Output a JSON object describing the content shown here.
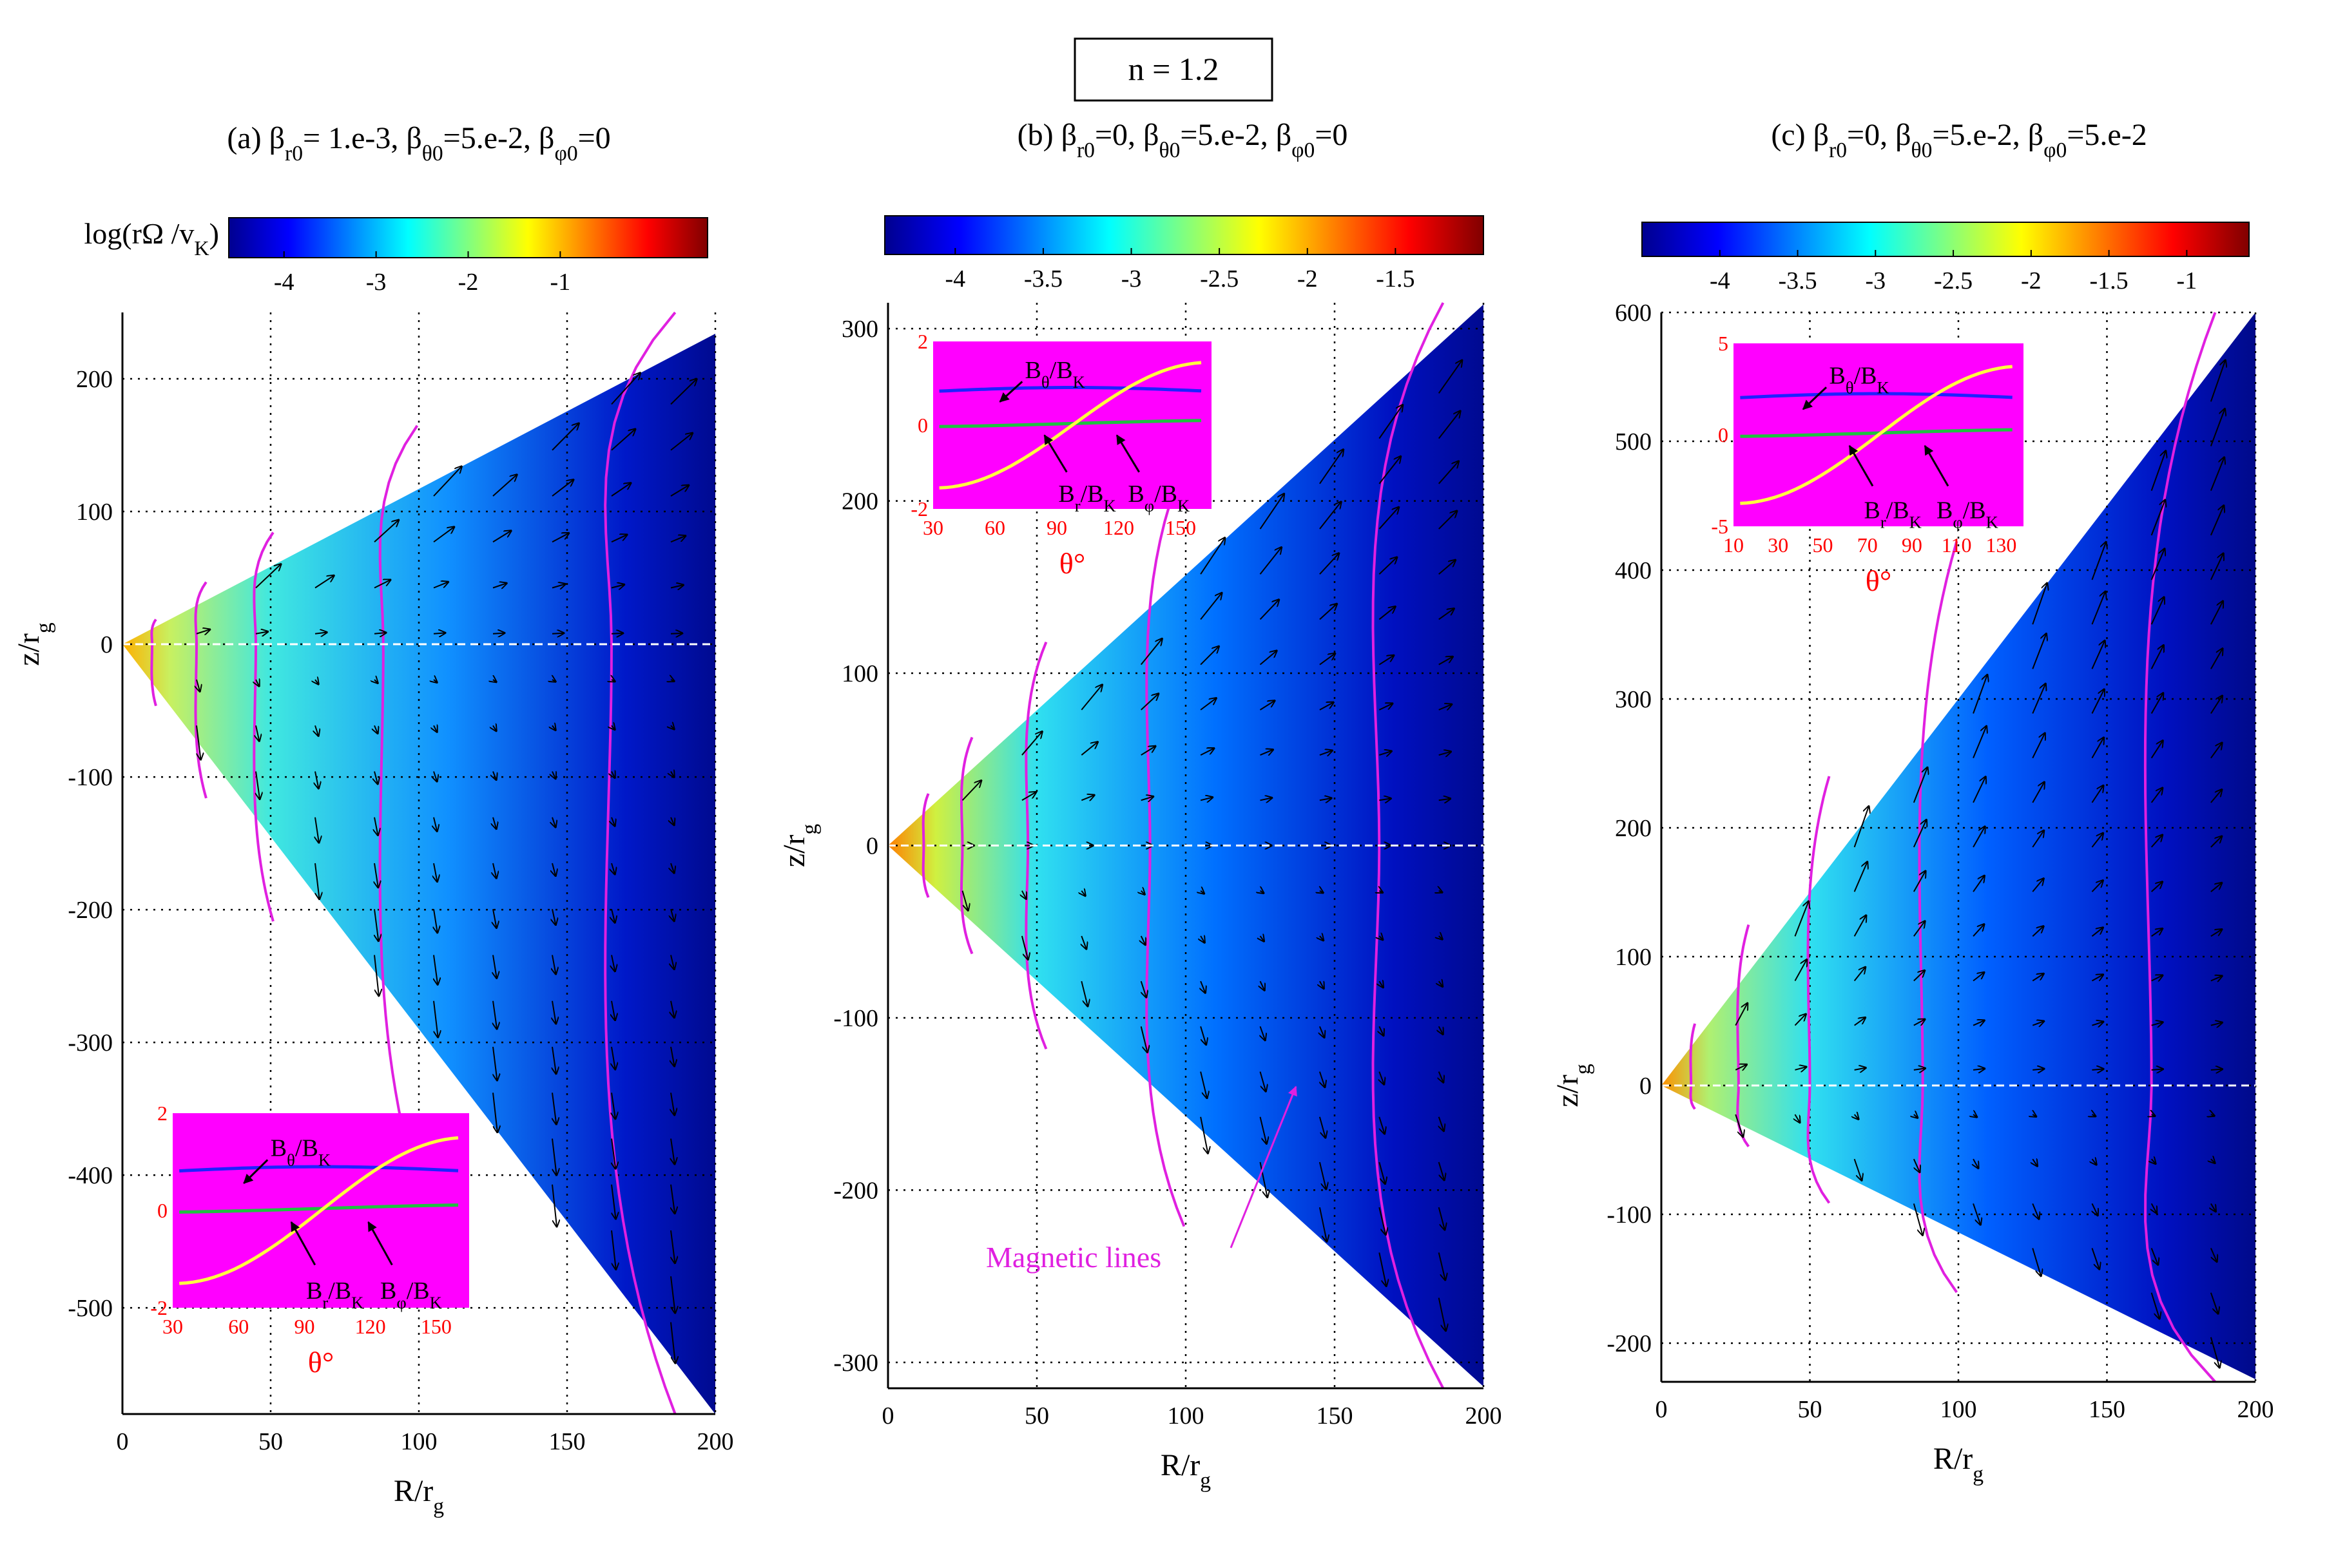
{
  "figure_title": "n = 1.2",
  "colors": {
    "magnetic_line": "#e020e0",
    "inset_bg": "#ff00ff",
    "b_theta": "#2020ff",
    "b_r": "#20c040",
    "b_phi": "#ffff40",
    "inset_tick": "#ff0000",
    "equator": "#ffffff"
  },
  "chart_data": [
    {
      "type": "heatmap",
      "id": "a",
      "title_parts": {
        "prefix": "(a) ",
        "beta": "β",
        "sub_r": "r0",
        "val_r": "= 1.e-3, ",
        "sub_t": "θ0",
        "val_t": "=5.e-2, ",
        "sub_p": "φ0",
        "val_p": "=0"
      },
      "colorbar_label": "log(rΩ /v",
      "colorbar_label_sub": "K",
      "colorbar_label_end": ")",
      "colorbar": {
        "range": [
          -4.6,
          0.6
        ],
        "ticks": [
          "-4",
          "-3",
          "-2",
          "-1"
        ],
        "tick_values": [
          -4,
          -3,
          -2,
          -1
        ]
      },
      "xlabel": "R/r",
      "xlabel_sub": "g",
      "ylabel": "z/r",
      "ylabel_sub": "g",
      "xlim": [
        0,
        200
      ],
      "ylim": [
        -580,
        250
      ],
      "xticks": [
        0,
        50,
        100,
        150,
        200
      ],
      "xtick_labels": [
        "0",
        "50",
        "100",
        "150",
        "200"
      ],
      "yticks": [
        200,
        100,
        0,
        -100,
        -200,
        -300,
        -400,
        -500
      ],
      "ytick_labels": [
        "200",
        "100",
        "0",
        "-100",
        "-200",
        "-300",
        "-400",
        "-500"
      ],
      "wedge_slopes": {
        "upper": 1.17,
        "lower": -2.9
      },
      "field_lines_R_at_equator": [
        10,
        25,
        45,
        88,
        165
      ],
      "inset": {
        "placement": "bottom-left",
        "xticks": [
          30,
          60,
          90,
          120,
          150
        ],
        "xtick_labels": [
          "30",
          "60",
          "90",
          "120",
          "150"
        ],
        "yticks": [
          2,
          0,
          -2
        ],
        "ytick_labels": [
          "2",
          "0",
          "-2"
        ],
        "xlabel": "θ°",
        "labels": {
          "theta": "B",
          "theta_sub": "θ",
          "theta_den": "/B",
          "theta_den_sub": "K",
          "r": "B",
          "r_sub": "r",
          "r_den": "/B",
          "r_den_sub": "K",
          "phi": "B",
          "phi_sub": "φ",
          "phi_den": "/B",
          "phi_den_sub": "K"
        }
      }
    },
    {
      "type": "heatmap",
      "id": "b",
      "title_parts": {
        "prefix": "(b) ",
        "beta": "β",
        "sub_r": "r0",
        "val_r": "=0, ",
        "sub_t": "θ0",
        "val_t": "=5.e-2, ",
        "sub_p": "φ0",
        "val_p": "=0"
      },
      "colorbar": {
        "range": [
          -4.4,
          -1.0
        ],
        "ticks": [
          "-4",
          "-3.5",
          "-3",
          "-2.5",
          "-2",
          "-1.5"
        ],
        "tick_values": [
          -4,
          -3.5,
          -3,
          -2.5,
          -2,
          -1.5
        ]
      },
      "xlabel": "R/r",
      "xlabel_sub": "g",
      "ylabel": "z/r",
      "ylabel_sub": "g",
      "xlim": [
        0,
        200
      ],
      "ylim": [
        -315,
        315
      ],
      "xticks": [
        0,
        50,
        100,
        150,
        200
      ],
      "xtick_labels": [
        "0",
        "50",
        "100",
        "150",
        "200"
      ],
      "yticks": [
        300,
        200,
        100,
        0,
        -100,
        -200,
        -300
      ],
      "ytick_labels": [
        "300",
        "200",
        "100",
        "0",
        "-100",
        "-200",
        "-300"
      ],
      "wedge_slopes": {
        "upper": 1.57,
        "lower": -1.57
      },
      "field_lines_R_at_equator": [
        12,
        25,
        47,
        88,
        165
      ],
      "annotation": "Magnetic lines",
      "inset": {
        "placement": "top-left",
        "xticks": [
          30,
          60,
          90,
          120,
          150
        ],
        "xtick_labels": [
          "30",
          "60",
          "90",
          "120",
          "150"
        ],
        "yticks": [
          2,
          0,
          -2
        ],
        "ytick_labels": [
          "2",
          "0",
          "-2"
        ],
        "xlabel": "θ°",
        "labels": {
          "theta": "B",
          "theta_sub": "θ",
          "theta_den": "/B",
          "theta_den_sub": "K",
          "r": "B",
          "r_sub": "r",
          "r_den": "/B",
          "r_den_sub": "K",
          "phi": "B",
          "phi_sub": "φ",
          "phi_den": "/B",
          "phi_den_sub": "K"
        }
      }
    },
    {
      "type": "heatmap",
      "id": "c",
      "title_parts": {
        "prefix": "(c) ",
        "beta": "β",
        "sub_r": "r0",
        "val_r": "=0, ",
        "sub_t": "θ0",
        "val_t": "=5.e-2, ",
        "sub_p": "φ0",
        "val_p": "=5.e-2"
      },
      "colorbar": {
        "range": [
          -4.5,
          -0.6
        ],
        "ticks": [
          "-4",
          "-3.5",
          "-3",
          "-2.5",
          "-2",
          "-1.5",
          "-1"
        ],
        "tick_values": [
          -4,
          -3.5,
          -3,
          -2.5,
          -2,
          -1.5,
          -1
        ]
      },
      "xlabel": "R/r",
      "xlabel_sub": "g",
      "ylabel": "z/r",
      "ylabel_sub": "g",
      "xlim": [
        0,
        200
      ],
      "ylim": [
        -230,
        600
      ],
      "xticks": [
        0,
        50,
        100,
        150,
        200
      ],
      "xtick_labels": [
        "0",
        "50",
        "100",
        "150",
        "200"
      ],
      "yticks": [
        600,
        500,
        400,
        300,
        200,
        100,
        0,
        -100,
        -200
      ],
      "ytick_labels": [
        "600",
        "500",
        "400",
        "300",
        "200",
        "100",
        "0",
        "-100",
        "-200"
      ],
      "wedge_slopes": {
        "upper": 3.0,
        "lower": -1.14
      },
      "field_lines_R_at_equator": [
        10,
        26,
        50,
        88,
        165
      ],
      "inset": {
        "placement": "top-left",
        "xticks": [
          10,
          30,
          50,
          70,
          90,
          110,
          130
        ],
        "xtick_labels": [
          "10",
          "30",
          "50",
          "70",
          "90",
          "110",
          "130"
        ],
        "yticks": [
          5,
          0,
          -5
        ],
        "ytick_labels": [
          "5",
          "0",
          "-5"
        ],
        "xlabel": "θ°",
        "labels": {
          "theta": "B",
          "theta_sub": "θ",
          "theta_den": "/B",
          "theta_den_sub": "K",
          "r": "B",
          "r_sub": "r",
          "r_den": "/B",
          "r_den_sub": "K",
          "phi": "B",
          "phi_sub": "φ",
          "phi_den": "/B",
          "phi_den_sub": "K"
        }
      }
    }
  ]
}
